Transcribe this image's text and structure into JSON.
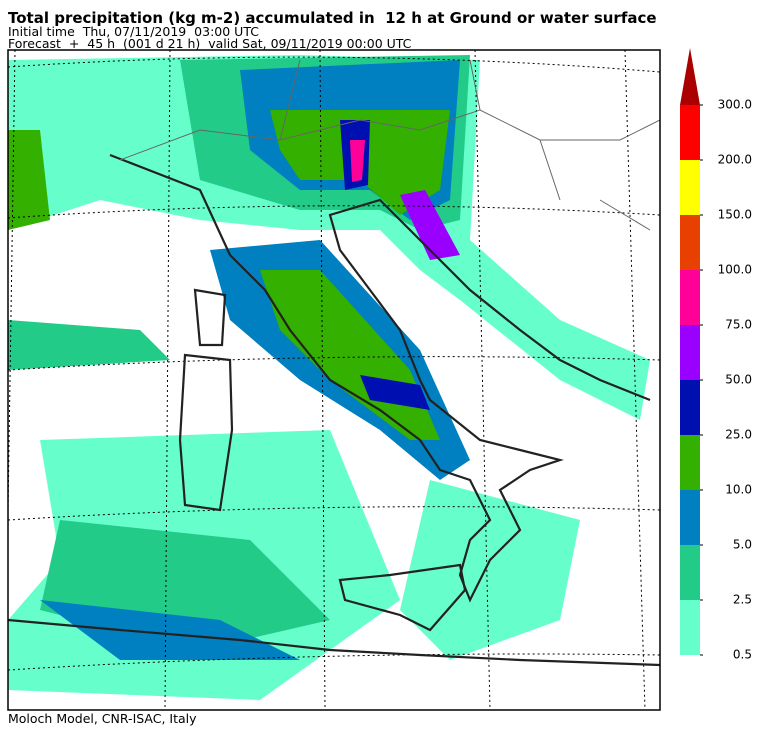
{
  "header": {
    "title": "Total precipitation (kg m-2) accumulated in  12 h at Ground or water surface",
    "initial_time": "Initial time  Thu, 07/11/2019  03:00 UTC",
    "forecast": "Forecast  +  45 h  (001 d 21 h)  valid Sat, 09/11/2019 00:00 UTC"
  },
  "legend": {
    "levels": [
      {
        "value": 0.5,
        "label": "0.5"
      },
      {
        "value": 2.5,
        "label": "2.5"
      },
      {
        "value": 5,
        "label": "5.0"
      },
      {
        "value": 10,
        "label": "10.0"
      },
      {
        "value": 25,
        "label": "25.0"
      },
      {
        "value": 50,
        "label": "50.0"
      },
      {
        "value": 75,
        "label": "75.0"
      },
      {
        "value": 100,
        "label": "100.0"
      },
      {
        "value": 150,
        "label": "150.0"
      },
      {
        "value": 200,
        "label": "200.0"
      },
      {
        "value": 300,
        "label": "300.0"
      }
    ],
    "colors": [
      "#66ffcc",
      "#22cc88",
      "#0080c0",
      "#33b000",
      "#0010b0",
      "#9900ff",
      "#ff0099",
      "#e84000",
      "#ffff00",
      "#ff0000"
    ],
    "over_color": "#aa0000"
  },
  "footer": "Moloch Model, CNR-ISAC, Italy"
}
